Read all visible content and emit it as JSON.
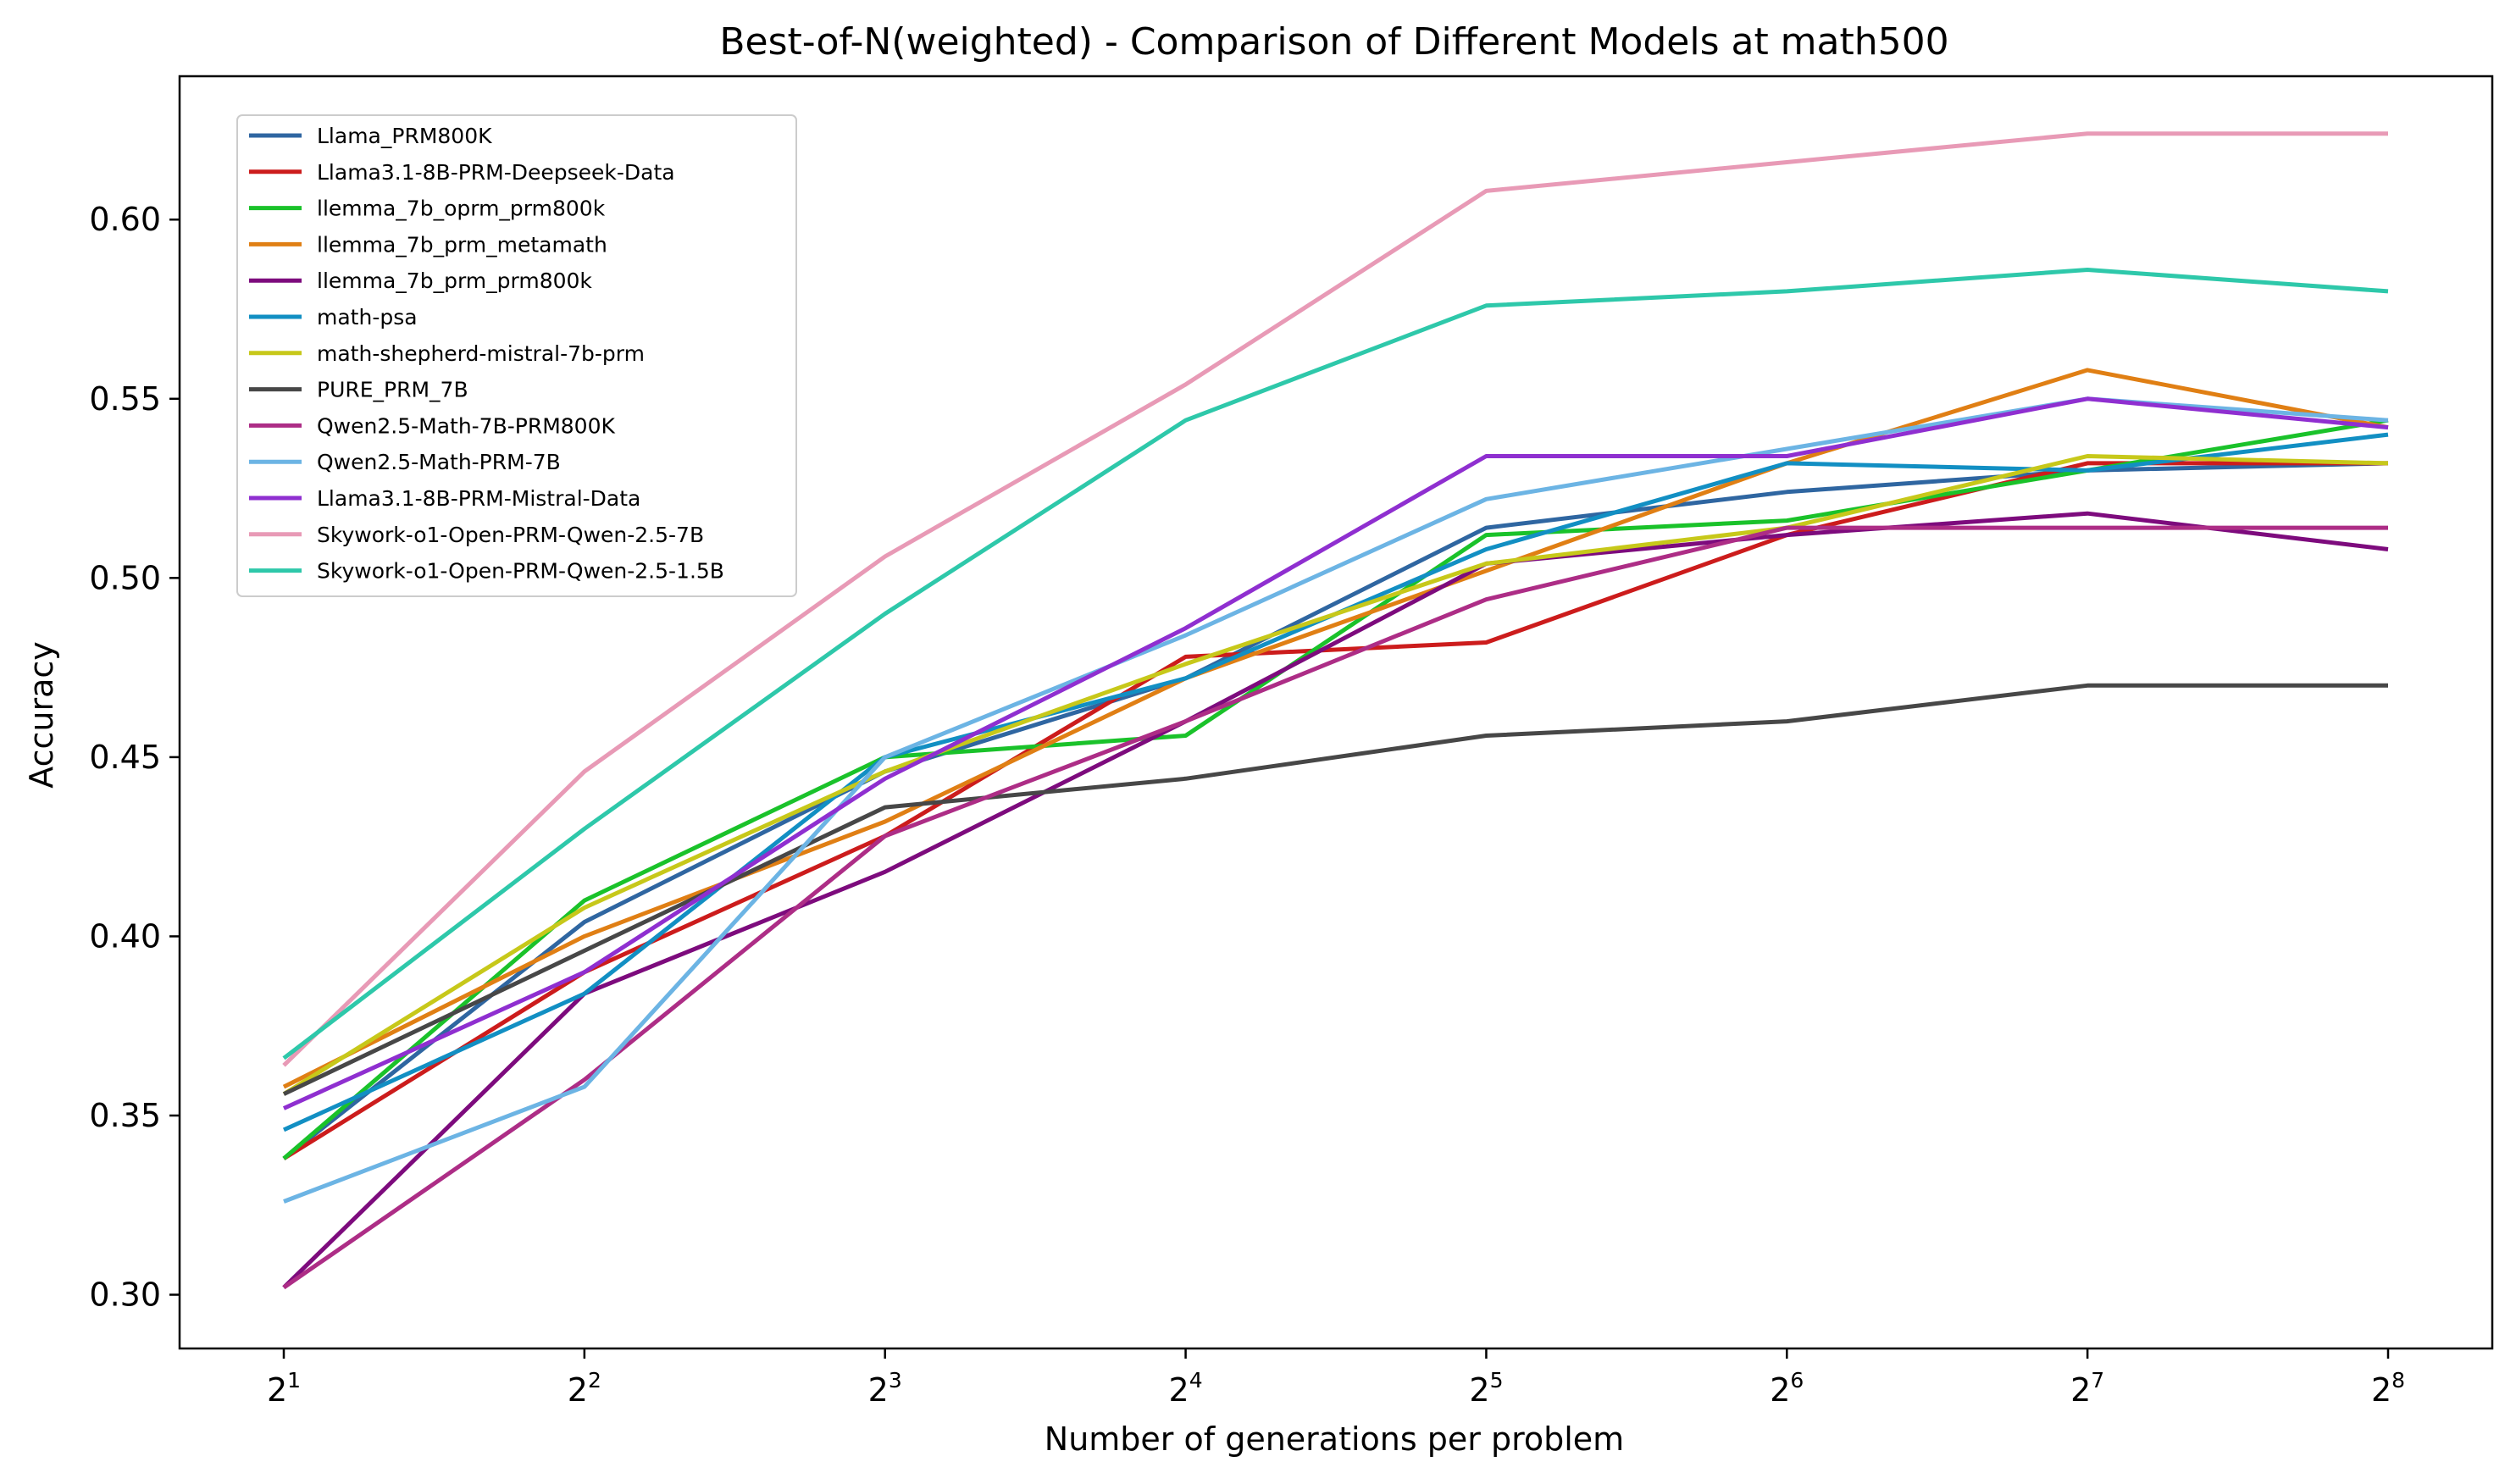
{
  "chart_data": {
    "type": "line",
    "title": "Best-of-N(weighted) - Comparison of Different Models at math500",
    "xlabel": "Number of generations per problem",
    "ylabel": "Accuracy",
    "x_scale": "log2",
    "x": [
      2,
      4,
      8,
      16,
      32,
      64,
      128,
      256
    ],
    "x_tick_labels": [
      {
        "base": "2",
        "exp": "1"
      },
      {
        "base": "2",
        "exp": "2"
      },
      {
        "base": "2",
        "exp": "3"
      },
      {
        "base": "2",
        "exp": "4"
      },
      {
        "base": "2",
        "exp": "5"
      },
      {
        "base": "2",
        "exp": "6"
      },
      {
        "base": "2",
        "exp": "7"
      },
      {
        "base": "2",
        "exp": "8"
      }
    ],
    "y_ticks": [
      "0.30",
      "0.35",
      "0.40",
      "0.45",
      "0.50",
      "0.55",
      "0.60"
    ],
    "ylim": [
      0.285,
      0.64
    ],
    "grid": false,
    "legend_position": "upper-left",
    "series": [
      {
        "name": "Llama_PRM800K",
        "color": "#2f66a1",
        "values": [
          0.338,
          0.404,
          0.446,
          0.472,
          0.514,
          0.524,
          0.53,
          0.532
        ]
      },
      {
        "name": "Llama3.1-8B-PRM-Deepseek-Data",
        "color": "#cc1c1c",
        "values": [
          0.338,
          0.39,
          0.428,
          0.478,
          0.482,
          0.512,
          0.532,
          0.532
        ]
      },
      {
        "name": "llemma_7b_oprm_prm800k",
        "color": "#1ac22a",
        "values": [
          0.338,
          0.41,
          0.45,
          0.456,
          0.512,
          0.516,
          0.53,
          0.544
        ]
      },
      {
        "name": "llemma_7b_prm_metamath",
        "color": "#e07f14",
        "values": [
          0.358,
          0.4,
          0.432,
          0.472,
          0.502,
          0.532,
          0.558,
          0.542
        ]
      },
      {
        "name": "llemma_7b_prm_prm800k",
        "color": "#7d0b7d",
        "values": [
          0.302,
          0.384,
          0.418,
          0.46,
          0.504,
          0.512,
          0.518,
          0.508
        ]
      },
      {
        "name": "math-psa",
        "color": "#128fc3",
        "values": [
          0.346,
          0.384,
          0.45,
          0.472,
          0.508,
          0.532,
          0.53,
          0.54
        ]
      },
      {
        "name": "math-shepherd-mistral-7b-prm",
        "color": "#c7c81a",
        "values": [
          0.356,
          0.408,
          0.446,
          0.476,
          0.504,
          0.514,
          0.534,
          0.532
        ]
      },
      {
        "name": "PURE_PRM_7B",
        "color": "#474747",
        "values": [
          0.356,
          0.396,
          0.436,
          0.444,
          0.456,
          0.46,
          0.47,
          0.47
        ]
      },
      {
        "name": "Qwen2.5-Math-7B-PRM800K",
        "color": "#ad2d86",
        "values": [
          0.302,
          0.36,
          0.428,
          0.46,
          0.494,
          0.514,
          0.514,
          0.514
        ]
      },
      {
        "name": "Qwen2.5-Math-PRM-7B",
        "color": "#6cb4e4",
        "values": [
          0.326,
          0.358,
          0.45,
          0.484,
          0.522,
          0.536,
          0.55,
          0.544
        ]
      },
      {
        "name": "Llama3.1-8B-PRM-Mistral-Data",
        "color": "#8f2fd0",
        "values": [
          0.352,
          0.39,
          0.444,
          0.486,
          0.534,
          0.534,
          0.55,
          0.542
        ]
      },
      {
        "name": "Skywork-o1-Open-PRM-Qwen-2.5-7B",
        "color": "#e89ab6",
        "values": [
          0.364,
          0.446,
          0.506,
          0.554,
          0.608,
          0.616,
          0.624,
          0.624
        ]
      },
      {
        "name": "Skywork-o1-Open-PRM-Qwen-2.5-1.5B",
        "color": "#2ec8aa",
        "values": [
          0.366,
          0.43,
          0.49,
          0.544,
          0.576,
          0.58,
          0.586,
          0.58
        ]
      }
    ]
  }
}
